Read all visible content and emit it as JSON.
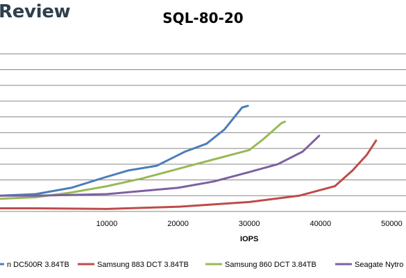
{
  "header": {
    "brand": "Review"
  },
  "chart_data": {
    "type": "line",
    "title": "SQL-80-20",
    "xlabel": "IOPS",
    "ylabel": "",
    "xlim": [
      -5000,
      52000
    ],
    "ylim": [
      0,
      55
    ],
    "x_ticks": [
      10000,
      20000,
      30000,
      40000,
      50000
    ],
    "x_tick_labels": [
      "10000",
      "20000",
      "30000",
      "40000",
      "50000"
    ],
    "y_gridlines": [
      5,
      10,
      15,
      20,
      25,
      30,
      35,
      40,
      45,
      50
    ],
    "grid": true,
    "legend": "bottom",
    "series": [
      {
        "name": "n DC500R 3.84TB",
        "color": "#4a7ebb",
        "x": [
          -5000,
          0,
          5000,
          10000,
          13000,
          17000,
          21000,
          24000,
          26500,
          29000,
          29800
        ],
        "y": [
          5,
          5.5,
          7.5,
          11,
          13,
          14.5,
          19,
          21.5,
          26,
          33,
          33.5
        ]
      },
      {
        "name": "Samsung 883 DCT 3.84TB",
        "color": "#be4b48",
        "x": [
          -5000,
          0,
          10000,
          20000,
          30000,
          37000,
          42000,
          44500,
          46500,
          47800
        ],
        "y": [
          1,
          1,
          0.8,
          1.5,
          3,
          5,
          8,
          13,
          18,
          22.5
        ]
      },
      {
        "name": "Samsung 860 DCT 3.84TB",
        "color": "#98b954",
        "x": [
          -5000,
          0,
          5000,
          10000,
          15000,
          20000,
          25000,
          30000,
          32000,
          34500,
          35000
        ],
        "y": [
          4,
          4.5,
          6,
          8,
          10.5,
          13.5,
          16.5,
          19.5,
          23,
          28,
          28.5
        ]
      },
      {
        "name": "Seagate Nytro",
        "color": "#7d60a0",
        "x": [
          -5000,
          0,
          10000,
          20000,
          25000,
          30000,
          34000,
          37500,
          39800
        ],
        "y": [
          5,
          5,
          5.5,
          7.5,
          9.5,
          12.5,
          15,
          19,
          24
        ]
      }
    ]
  }
}
